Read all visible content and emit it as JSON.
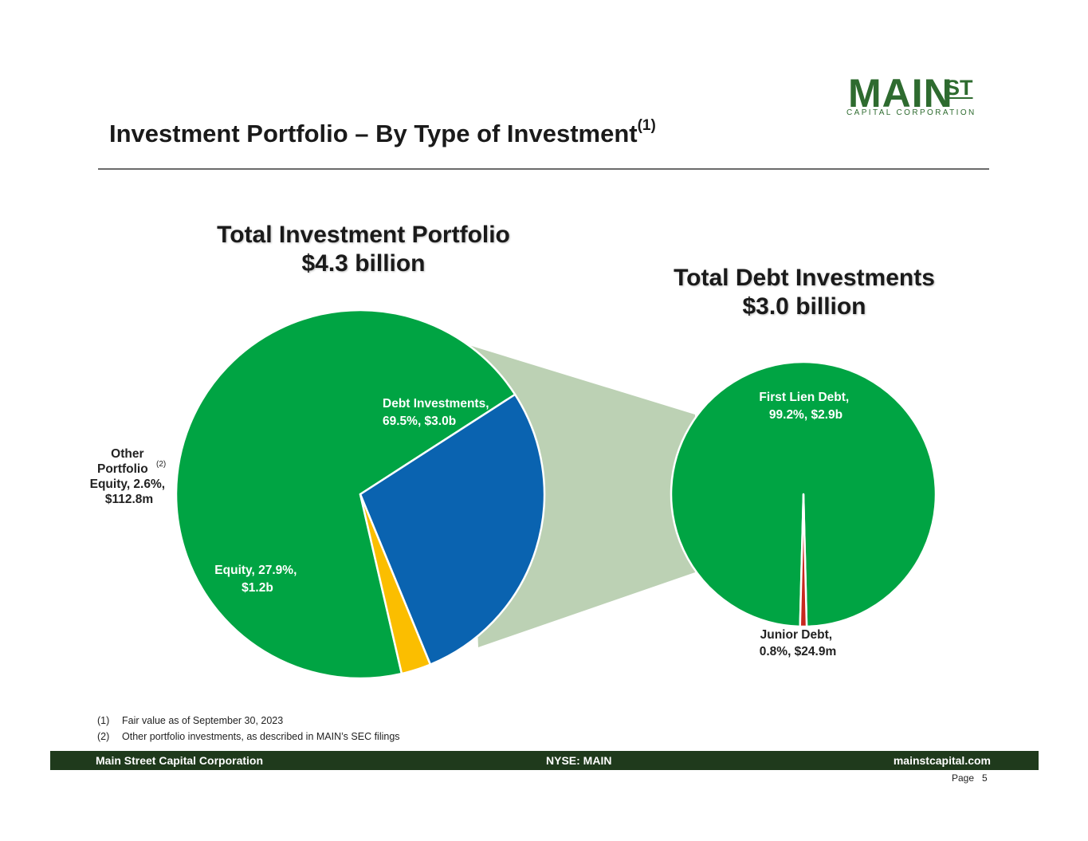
{
  "logo": {
    "main": "MAIN",
    "st": "ST",
    "subtitle": "CAPITAL CORPORATION"
  },
  "page": {
    "title": "Investment Portfolio – By Type of Investment",
    "title_sup": "(1)"
  },
  "colors": {
    "green": "#00a443",
    "blue": "#0a63b0",
    "yellow": "#fbbe00",
    "red": "#c8281e",
    "connector": "#bcd1b4",
    "brand": "#2e6b2f",
    "footer_bg": "#1f3a1c"
  },
  "chart_data": [
    {
      "type": "pie",
      "title": "Total Investment Portfolio",
      "subtitle": "$4.3 billion",
      "slices": [
        {
          "name": "Debt Investments",
          "percent": 69.5,
          "amount": "$3.0b",
          "color": "#00a443",
          "label_lines": [
            "Debt Investments,",
            "69.5%, $3.0b"
          ]
        },
        {
          "name": "Equity",
          "percent": 27.9,
          "amount": "$1.2b",
          "color": "#0a63b0",
          "label_lines": [
            "Equity, 27.9%,",
            "$1.2b"
          ]
        },
        {
          "name": "Other Portfolio Equity",
          "percent": 2.6,
          "amount": "$112.8m",
          "color": "#fbbe00",
          "label_lines": [
            "Other",
            "Portfolio",
            "Equity, 2.6%,",
            "$112.8m"
          ],
          "label_sup": "(2)"
        }
      ]
    },
    {
      "type": "pie",
      "title": "Total Debt Investments",
      "subtitle": "$3.0 billion",
      "slices": [
        {
          "name": "First Lien Debt",
          "percent": 99.2,
          "amount": "$2.9b",
          "color": "#00a443",
          "label_lines": [
            "First Lien Debt,",
            "99.2%, $2.9b"
          ]
        },
        {
          "name": "Junior Debt",
          "percent": 0.8,
          "amount": "$24.9m",
          "color": "#c8281e",
          "label_lines": [
            "Junior Debt,",
            "0.8%, $24.9m"
          ]
        }
      ]
    }
  ],
  "footnotes": [
    {
      "num": "(1)",
      "text": "Fair value as of September 30, 2023"
    },
    {
      "num": "(2)",
      "text": "Other portfolio investments, as described in MAIN’s SEC filings"
    }
  ],
  "footer": {
    "left": "Main Street Capital Corporation",
    "center": "NYSE: MAIN",
    "right": "mainstcapital.com"
  },
  "page_number": {
    "label": "Page",
    "value": "5"
  }
}
